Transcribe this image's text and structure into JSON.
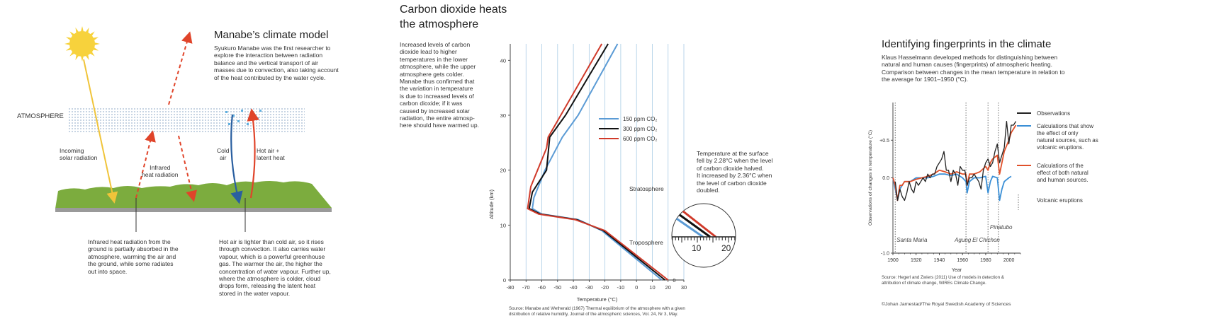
{
  "panel_left": {
    "title": "Manabe’s climate model",
    "description": "Syukuro Manabe was the first researcher to\nexplore the interaction between radiation\nbalance and the vertical transport of air\nmasses due to convection, also taking account\nof the heat contributed by the water cycle.",
    "atmosphere_label": "ATMOSPHERE",
    "incoming_label": "Incoming\nsolar radiation",
    "infrared_label": "Infrared\nheat radiation",
    "cold_air_label": "Cold\nair",
    "hot_air_label": "Hot air +\nlatent heat",
    "caption_left": "Infrared heat radiation from the\nground is partially absorbed in the\natmosphere, warming the air and\nthe ground, while some radiates\nout into space.",
    "caption_right": "Hot air is lighter than cold air, so it rises\nthrough convection. It also carries water\nvapour, which is a powerful greenhouse\ngas. The warmer the air, the higher the\nconcentration of water vapour. Further up,\nwhere the atmosphere is colder, cloud\ndrops form, releasing the latent heat\nstored in the water vapour.",
    "colors": {
      "sun": "#f7d23c",
      "ground": "#7cac3e",
      "ground_base": "#9a9a9a",
      "red_arrow": "#e0442a",
      "blue_arrow": "#2a5fa0",
      "atmosphere_dots": "#9fb6cf",
      "water_drops": "#5fb0e0"
    }
  },
  "panel_middle": {
    "title": "Carbon dioxide heats\nthe atmosphere",
    "description": "Increased levels of carbon\ndioxide lead to higher\ntemperatures in the lower\natmosphere, while the upper\natmosphere gets colder.\nManabe thus confirmed that\nthe variation in temperature\nis due to increased levels of\ncarbon dioxide; if it was\ncaused by increased solar\nradiation, the entire atmosp-\nhere should have warmed up.",
    "annotation": "Temperature at the surface\nfell by 2.28°C when the level\nof carbon dioxide halved.\nIt increased by 2.36°C when\nthe level of carbon dioxide\ndoubled.",
    "stratosphere_label": "Stratosphere",
    "troposphere_label": "Troposphere",
    "zoom_ticks": [
      "10",
      "20"
    ],
    "source": "Source: Manabe and Wetherald (1967) Thermal equilibrium of the atmosphere with a given\ndistribution of relative humidity, Journal of the atmospheric sciences, Vol. 24, Nr 3, May."
  },
  "panel_right": {
    "title": "Identifying fingerprints in the climate",
    "description": "Klaus Hasselmann developed methods for distinguishing between\nnatural and human causes (fingerprints) of atmospheric heating.\nComparison between changes in the mean temperature in relation to\nthe average for 1901–1950 (°C).",
    "source": "Source: Hegerl and Zwiers (2011) Use of models in detection &\nattribution of climate change, WIREs Climate Change.",
    "copyright": "©Johan Jarnestad/The Royal Swedish Academy of Sciences"
  },
  "chart_data": [
    {
      "type": "line",
      "xlabel": "Temperature (°C)",
      "ylabel": "Altitude (km)",
      "xlim": [
        -80,
        30
      ],
      "ylim": [
        0,
        43
      ],
      "x_ticks": [
        "-80",
        "-70",
        "-60",
        "-50",
        "-40",
        "-30",
        "-20",
        "-10",
        "0",
        "10",
        "20",
        "30"
      ],
      "y_ticks": [
        "0",
        "10",
        "20",
        "30",
        "40"
      ],
      "grid": "vertical",
      "legend_position": "upper-middle",
      "series": [
        {
          "name": "150 ppm CO₂",
          "color": "#5b9bd5",
          "points": [
            [
              16,
              0
            ],
            [
              -22,
              9
            ],
            [
              -37,
              11
            ],
            [
              -60,
              12
            ],
            [
              -66,
              13
            ],
            [
              -65,
              15
            ],
            [
              -58,
              20
            ],
            [
              -47,
              26
            ],
            [
              -37,
              30
            ],
            [
              -12,
              43
            ]
          ]
        },
        {
          "name": "300 ppm CO₂",
          "color": "#111111",
          "points": [
            [
              18,
              0
            ],
            [
              -21,
              9
            ],
            [
              -38,
              11
            ],
            [
              -61,
              12
            ],
            [
              -68,
              13
            ],
            [
              -66,
              16
            ],
            [
              -57,
              20
            ],
            [
              -55,
              26
            ],
            [
              -45,
              30
            ],
            [
              -18,
              43
            ]
          ]
        },
        {
          "name": "600 ppm CO₂",
          "color": "#d03a2a",
          "points": [
            [
              20,
              0
            ],
            [
              -20,
              9
            ],
            [
              -39,
              11
            ],
            [
              -62,
              12
            ],
            [
              -69,
              13
            ],
            [
              -67,
              17
            ],
            [
              -57,
              24
            ],
            [
              -56,
              26
            ],
            [
              -48,
              30
            ],
            [
              -22,
              43
            ]
          ]
        }
      ]
    },
    {
      "type": "line",
      "xlabel": "Year",
      "ylabel": "Observations of changes in temperature (°C)",
      "xlim": [
        1900,
        2010
      ],
      "ylim": [
        -1.0,
        1.0
      ],
      "x_ticks": [
        "1900",
        "1920",
        "1940",
        "1960",
        "1980",
        "2000"
      ],
      "y_ticks": [
        "-1.0",
        "0.0",
        "+0.5"
      ],
      "legend_position": "right",
      "series": [
        {
          "name": "Observations",
          "color": "#222222",
          "x": [
            1902,
            1904,
            1906,
            1908,
            1910,
            1912,
            1914,
            1916,
            1918,
            1920,
            1922,
            1924,
            1926,
            1928,
            1930,
            1932,
            1934,
            1936,
            1938,
            1940,
            1942,
            1944,
            1946,
            1948,
            1950,
            1952,
            1954,
            1956,
            1958,
            1960,
            1962,
            1964,
            1966,
            1968,
            1970,
            1972,
            1974,
            1976,
            1978,
            1980,
            1982,
            1984,
            1986,
            1988,
            1990,
            1992,
            1994,
            1996,
            1998,
            2000,
            2002,
            2004,
            2006
          ],
          "values": [
            -0.05,
            -0.3,
            -0.15,
            -0.25,
            -0.3,
            -0.2,
            -0.05,
            -0.15,
            -0.2,
            -0.05,
            -0.1,
            -0.05,
            0.0,
            -0.05,
            0.05,
            0.0,
            0.05,
            0.05,
            0.15,
            0.2,
            0.25,
            0.35,
            0.1,
            0.1,
            -0.05,
            0.1,
            0.05,
            -0.1,
            0.15,
            0.1,
            0.1,
            -0.1,
            0.0,
            0.0,
            0.05,
            0.0,
            -0.05,
            -0.15,
            0.1,
            0.2,
            0.25,
            0.15,
            0.2,
            0.35,
            0.45,
            0.2,
            0.3,
            0.4,
            0.75,
            0.45,
            0.7,
            0.7,
            0.75
          ]
        },
        {
          "name": "Calculations that show the effect of only natural sources, such as volcanic eruptions.",
          "color": "#3a8fd6",
          "x": [
            1900,
            1902,
            1904,
            1906,
            1908,
            1910,
            1915,
            1920,
            1925,
            1930,
            1935,
            1940,
            1945,
            1950,
            1955,
            1960,
            1963,
            1964,
            1966,
            1970,
            1975,
            1980,
            1982,
            1984,
            1986,
            1990,
            1992,
            1994,
            1996,
            2000,
            2002
          ],
          "values": [
            0.0,
            -0.15,
            -0.3,
            -0.15,
            -0.1,
            -0.05,
            -0.05,
            0.0,
            0.0,
            0.0,
            0.02,
            0.05,
            0.05,
            0.03,
            0.05,
            0.0,
            -0.05,
            -0.2,
            -0.05,
            0.0,
            0.0,
            0.02,
            -0.2,
            -0.05,
            0.02,
            0.0,
            -0.3,
            -0.15,
            -0.05,
            0.0,
            0.02
          ]
        },
        {
          "name": "Calculations of the effect of both natural and human sources.",
          "color": "#e0502a",
          "x": [
            1900,
            1902,
            1904,
            1906,
            1908,
            1910,
            1915,
            1920,
            1925,
            1930,
            1935,
            1940,
            1945,
            1950,
            1955,
            1960,
            1963,
            1964,
            1966,
            1970,
            1975,
            1980,
            1982,
            1984,
            1986,
            1990,
            1992,
            1994,
            1996,
            2000,
            2002,
            2006
          ],
          "values": [
            0.0,
            -0.1,
            -0.3,
            -0.1,
            -0.1,
            -0.05,
            -0.05,
            -0.02,
            0.0,
            0.02,
            0.05,
            0.1,
            0.08,
            0.05,
            0.08,
            0.05,
            0.05,
            -0.1,
            0.05,
            0.05,
            0.08,
            0.15,
            0.1,
            0.2,
            0.25,
            0.3,
            0.05,
            0.2,
            0.35,
            0.5,
            0.6,
            0.7
          ]
        },
        {
          "name": "Volcanic eruptions",
          "style": "dotted",
          "color": "#777777",
          "events": [
            {
              "label": "Santa Maria",
              "year": 1902
            },
            {
              "label": "Agung",
              "year": 1963
            },
            {
              "label": "El Chichon",
              "year": 1982
            },
            {
              "label": "Pinatubo",
              "year": 1991
            }
          ]
        }
      ]
    }
  ]
}
